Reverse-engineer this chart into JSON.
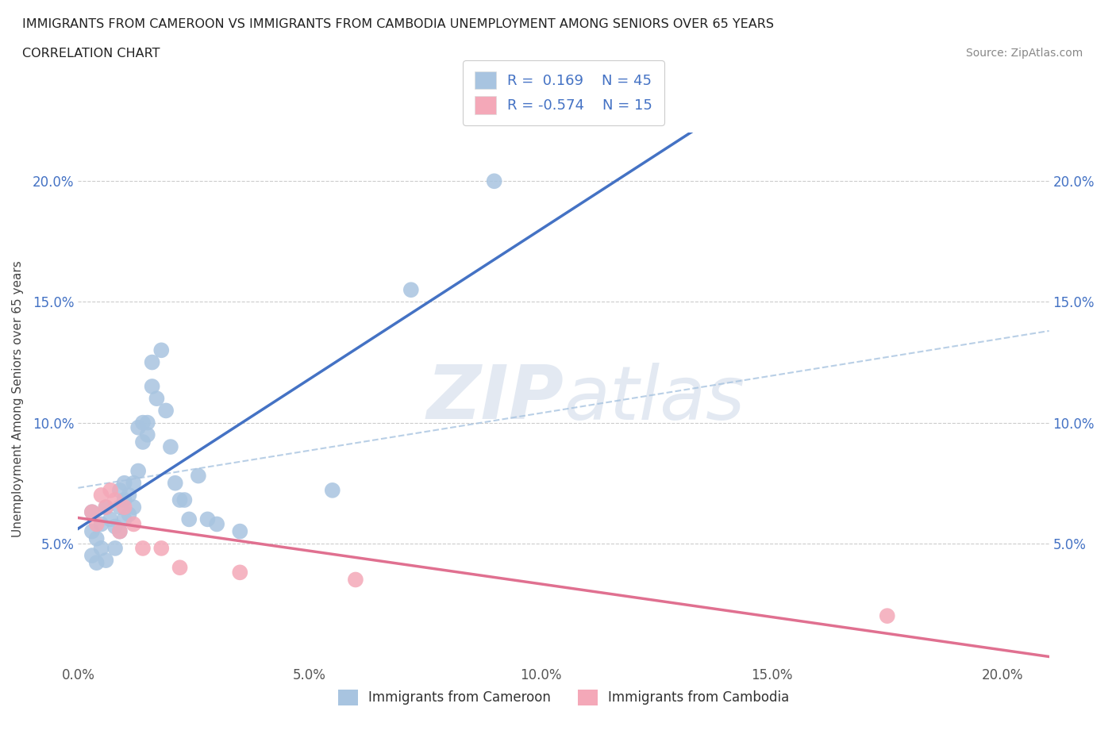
{
  "title_line1": "IMMIGRANTS FROM CAMEROON VS IMMIGRANTS FROM CAMBODIA UNEMPLOYMENT AMONG SENIORS OVER 65 YEARS",
  "title_line2": "CORRELATION CHART",
  "source_text": "Source: ZipAtlas.com",
  "ylabel": "Unemployment Among Seniors over 65 years",
  "xlim": [
    0.0,
    0.21
  ],
  "ylim": [
    0.0,
    0.22
  ],
  "xticks": [
    0.0,
    0.05,
    0.1,
    0.15,
    0.2
  ],
  "xtick_labels": [
    "0.0%",
    "5.0%",
    "10.0%",
    "15.0%",
    "20.0%"
  ],
  "yticks_left": [
    0.05,
    0.1,
    0.15,
    0.2
  ],
  "ytick_labels_left": [
    "5.0%",
    "10.0%",
    "15.0%",
    "20.0%"
  ],
  "yticks_right": [
    0.05,
    0.1,
    0.15,
    0.2
  ],
  "ytick_labels_right": [
    "5.0%",
    "10.0%",
    "15.0%",
    "20.0%"
  ],
  "cameroon_color": "#a8c4e0",
  "cambodia_color": "#f4a8b8",
  "line_cameroon_color": "#4472c4",
  "line_cambodia_color": "#e07090",
  "dash_line_color": "#a8c4e0",
  "watermark": "ZIPatlas",
  "legend_R_cameroon": "0.169",
  "legend_N_cameroon": "45",
  "legend_R_cambodia": "-0.574",
  "legend_N_cambodia": "15",
  "cameroon_x": [
    0.003,
    0.003,
    0.003,
    0.004,
    0.004,
    0.005,
    0.005,
    0.006,
    0.006,
    0.007,
    0.008,
    0.008,
    0.009,
    0.009,
    0.009,
    0.01,
    0.01,
    0.01,
    0.011,
    0.011,
    0.012,
    0.012,
    0.013,
    0.013,
    0.014,
    0.014,
    0.015,
    0.015,
    0.016,
    0.016,
    0.017,
    0.018,
    0.019,
    0.02,
    0.021,
    0.022,
    0.023,
    0.024,
    0.026,
    0.028,
    0.03,
    0.035,
    0.055,
    0.072,
    0.09
  ],
  "cameroon_y": [
    0.063,
    0.055,
    0.045,
    0.052,
    0.042,
    0.058,
    0.048,
    0.065,
    0.043,
    0.06,
    0.057,
    0.048,
    0.072,
    0.065,
    0.055,
    0.075,
    0.068,
    0.06,
    0.07,
    0.062,
    0.075,
    0.065,
    0.08,
    0.098,
    0.1,
    0.092,
    0.1,
    0.095,
    0.125,
    0.115,
    0.11,
    0.13,
    0.105,
    0.09,
    0.075,
    0.068,
    0.068,
    0.06,
    0.078,
    0.06,
    0.058,
    0.055,
    0.072,
    0.155,
    0.2
  ],
  "cambodia_x": [
    0.003,
    0.004,
    0.005,
    0.006,
    0.007,
    0.008,
    0.009,
    0.01,
    0.012,
    0.014,
    0.018,
    0.022,
    0.035,
    0.06,
    0.175
  ],
  "cambodia_y": [
    0.063,
    0.058,
    0.07,
    0.065,
    0.072,
    0.068,
    0.055,
    0.065,
    0.058,
    0.048,
    0.048,
    0.04,
    0.038,
    0.035,
    0.02
  ],
  "dash_line_x0": 0.0,
  "dash_line_x1": 0.21,
  "dash_line_y0": 0.073,
  "dash_line_y1": 0.138
}
